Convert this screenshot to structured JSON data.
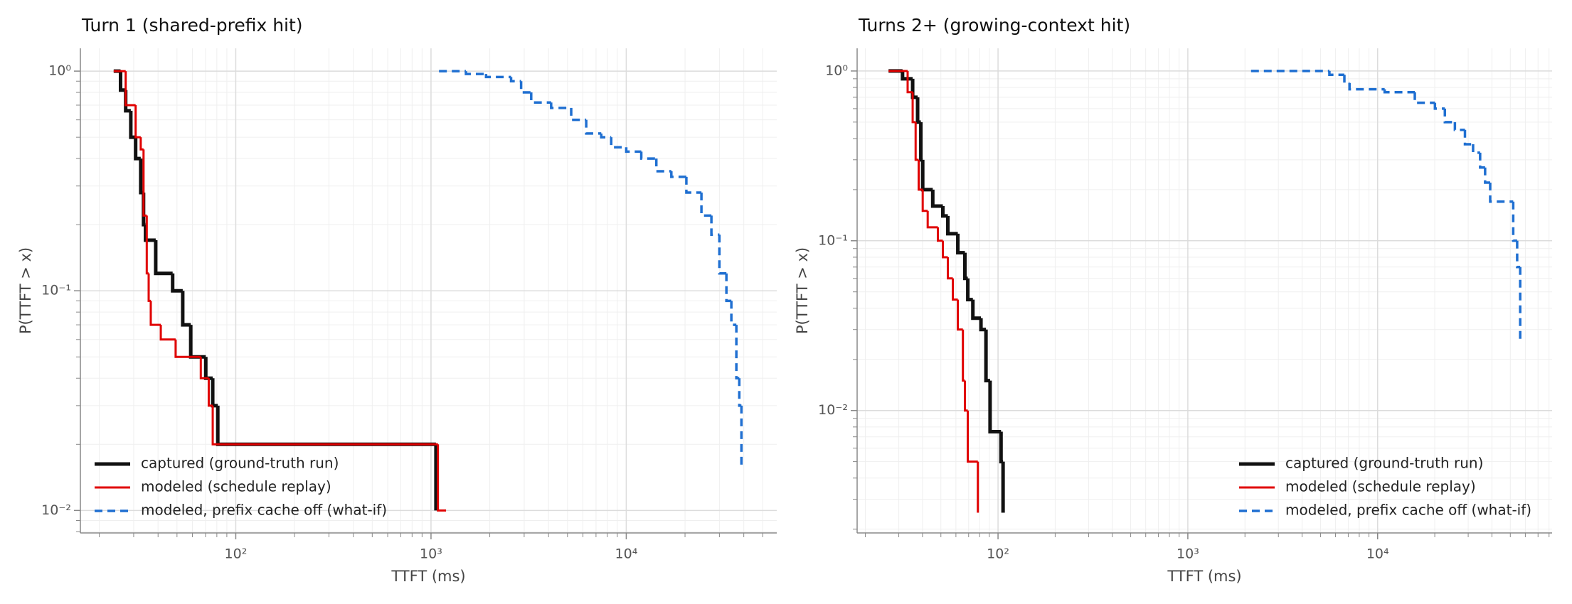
{
  "chart_data": [
    {
      "type": "step",
      "title": "Turn 1 (shared-prefix hit)",
      "xlabel": "TTFT (ms)",
      "ylabel": "P(TTFT > x)",
      "xscale": "log",
      "yscale": "log",
      "grid": true,
      "legend": "lower left",
      "xlim": [
        16,
        59000
      ],
      "ylim": [
        0.0079,
        1.27
      ],
      "xticks": [
        {
          "value": 100,
          "label": "10²"
        },
        {
          "value": 1000,
          "label": "10³"
        },
        {
          "value": 10000,
          "label": "10⁴"
        }
      ],
      "yticks": [
        {
          "value": 1,
          "label": "10⁰"
        },
        {
          "value": 0.1,
          "label": "10⁻¹"
        },
        {
          "value": 0.01,
          "label": "10⁻²"
        }
      ],
      "series": [
        {
          "name": "captured (ground-truth run)",
          "color": "#111111",
          "linestyle": "solid",
          "linewidth": 5,
          "x": [
            23.7,
            25.7,
            27.3,
            29,
            30.7,
            32.6,
            33.7,
            34.5,
            38.9,
            47.5,
            53.5,
            58.8,
            70.2,
            76.2,
            80.9,
            1060
          ],
          "values": [
            1,
            0.82,
            0.66,
            0.5,
            0.4,
            0.28,
            0.2,
            0.17,
            0.12,
            0.1,
            0.07,
            0.05,
            0.04,
            0.03,
            0.02,
            0.01
          ]
        },
        {
          "name": "modeled (schedule replay)",
          "color": "#e00000",
          "linestyle": "solid",
          "linewidth": 3,
          "x": [
            23.7,
            27.3,
            30.7,
            32.6,
            33.7,
            35.0,
            35.8,
            36.7,
            41.3,
            49.2,
            66.2,
            72.7,
            76.2,
            1085,
            1194
          ],
          "values": [
            1,
            0.7,
            0.5,
            0.44,
            0.22,
            0.12,
            0.09,
            0.07,
            0.06,
            0.05,
            0.04,
            0.03,
            0.02,
            0.01,
            0.01
          ]
        },
        {
          "name": "modeled, prefix cache off (what-if)",
          "color": "#1f6fd1",
          "linestyle": "dashed",
          "linewidth": 3.5,
          "x": [
            1099,
            1510,
            1914,
            2571,
            2894,
            3260,
            4124,
            5224,
            6237,
            7447,
            8375,
            10000,
            11940,
            14260,
            17020,
            20320,
            24270,
            27300,
            30000,
            32580,
            34540,
            36640,
            37930,
            38900
          ],
          "values": [
            1,
            0.97,
            0.94,
            0.9,
            0.8,
            0.72,
            0.68,
            0.6,
            0.52,
            0.5,
            0.45,
            0.43,
            0.4,
            0.35,
            0.33,
            0.28,
            0.22,
            0.18,
            0.12,
            0.09,
            0.07,
            0.04,
            0.03,
            0.016
          ]
        }
      ]
    },
    {
      "type": "step",
      "title": "Turns 2+ (growing-context hit)",
      "xlabel": "TTFT (ms)",
      "ylabel": "P(TTFT > x)",
      "xscale": "log",
      "yscale": "log",
      "grid": true,
      "legend": "lower right",
      "xlim": [
        18.1,
        83000
      ],
      "ylim": [
        0.0019,
        1.36
      ],
      "xticks": [
        {
          "value": 100,
          "label": "10²"
        },
        {
          "value": 1000,
          "label": "10³"
        },
        {
          "value": 10000,
          "label": "10⁴"
        }
      ],
      "yticks": [
        {
          "value": 1,
          "label": "10⁰"
        },
        {
          "value": 0.1,
          "label": "10⁻¹"
        },
        {
          "value": 0.01,
          "label": "10⁻²"
        }
      ],
      "series": [
        {
          "name": "captured (ground-truth run)",
          "color": "#111111",
          "linestyle": "solid",
          "linewidth": 5,
          "x": [
            26.5,
            31.4,
            35.5,
            37.7,
            39.2,
            40.1,
            45.3,
            51.2,
            54.4,
            61.4,
            66.9,
            69.3,
            73.7,
            81.3,
            86.4,
            90.8,
            103.7,
            106.3
          ],
          "values": [
            1,
            0.9,
            0.7,
            0.5,
            0.3,
            0.2,
            0.16,
            0.14,
            0.11,
            0.085,
            0.06,
            0.045,
            0.035,
            0.03,
            0.015,
            0.0075,
            0.005,
            0.0025
          ]
        },
        {
          "name": "modeled (schedule replay)",
          "color": "#e00000",
          "linestyle": "solid",
          "linewidth": 3,
          "x": [
            26.5,
            33.4,
            35.5,
            36.8,
            38.2,
            40.1,
            42.6,
            48.2,
            51.2,
            54.4,
            57.8,
            61.4,
            65.3,
            66.9,
            69.3,
            78.3
          ],
          "values": [
            1,
            0.75,
            0.5,
            0.3,
            0.2,
            0.15,
            0.12,
            0.1,
            0.08,
            0.06,
            0.045,
            0.03,
            0.015,
            0.01,
            0.005,
            0.0025
          ]
        },
        {
          "name": "modeled, prefix cache off (what-if)",
          "color": "#1f6fd1",
          "linestyle": "dashed",
          "linewidth": 3.5,
          "x": [
            2153,
            5570,
            6680,
            7110,
            10890,
            15700,
            20040,
            22600,
            25530,
            28840,
            31830,
            34670,
            36830,
            39170,
            51800,
            54330,
            56370
          ],
          "values": [
            1,
            0.95,
            0.85,
            0.78,
            0.75,
            0.65,
            0.6,
            0.5,
            0.45,
            0.37,
            0.33,
            0.27,
            0.22,
            0.17,
            0.1,
            0.07,
            0.026
          ]
        }
      ]
    }
  ]
}
